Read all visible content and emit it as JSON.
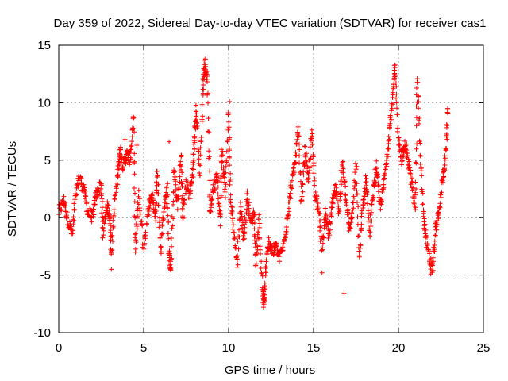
{
  "chart_data": {
    "type": "scatter",
    "title": "Day 359 of 2022, Sidereal Day-to-day VTEC variation (SDTVAR) for receiver cas1",
    "xlabel": "GPS time / hours",
    "ylabel": "SDTVAR / TECUs",
    "xlim": [
      0,
      25
    ],
    "ylim": [
      -10,
      15
    ],
    "x_ticks": [
      0,
      5,
      10,
      15,
      20,
      25
    ],
    "y_ticks": [
      -10,
      -5,
      0,
      5,
      10,
      15
    ],
    "grid": true,
    "marker": "+",
    "color": "#ff0000",
    "series": [
      {
        "name": "SDTVAR",
        "anchors": [
          [
            0.0,
            0.5
          ],
          [
            0.3,
            1.5
          ],
          [
            0.5,
            0.0
          ],
          [
            0.8,
            -1.5
          ],
          [
            1.0,
            2.0
          ],
          [
            1.2,
            3.5
          ],
          [
            1.5,
            2.5
          ],
          [
            1.7,
            0.5
          ],
          [
            2.0,
            0.0
          ],
          [
            2.2,
            2.0
          ],
          [
            2.5,
            3.0
          ],
          [
            2.6,
            -1.5
          ],
          [
            2.8,
            1.0
          ],
          [
            3.0,
            0.5
          ],
          [
            3.1,
            -3.0
          ],
          [
            3.3,
            1.5
          ],
          [
            3.5,
            4.0
          ],
          [
            3.6,
            6.0
          ],
          [
            3.8,
            4.5
          ],
          [
            4.0,
            5.5
          ],
          [
            4.2,
            5.0
          ],
          [
            4.4,
            8.6
          ],
          [
            4.5,
            -3.0
          ],
          [
            4.7,
            2.0
          ],
          [
            5.0,
            -2.5
          ],
          [
            5.3,
            1.0
          ],
          [
            5.5,
            2.0
          ],
          [
            5.7,
            0.0
          ],
          [
            5.8,
            4.5
          ],
          [
            6.0,
            -3.0
          ],
          [
            6.2,
            1.0
          ],
          [
            6.4,
            2.5
          ],
          [
            6.5,
            -3.5
          ],
          [
            6.6,
            -4.5
          ],
          [
            6.8,
            4.0
          ],
          [
            7.0,
            1.0
          ],
          [
            7.2,
            5.5
          ],
          [
            7.3,
            0.0
          ],
          [
            7.5,
            3.0
          ],
          [
            7.7,
            2.0
          ],
          [
            7.9,
            4.0
          ],
          [
            8.0,
            7.0
          ],
          [
            8.1,
            9.5
          ],
          [
            8.3,
            3.5
          ],
          [
            8.5,
            11.5
          ],
          [
            8.6,
            13.5
          ],
          [
            8.75,
            12.0
          ],
          [
            8.9,
            0.5
          ],
          [
            9.1,
            2.5
          ],
          [
            9.3,
            4.0
          ],
          [
            9.5,
            -0.5
          ],
          [
            9.6,
            6.0
          ],
          [
            9.8,
            2.0
          ],
          [
            10.0,
            9.0
          ],
          [
            10.1,
            2.0
          ],
          [
            10.3,
            -1.0
          ],
          [
            10.5,
            -4.0
          ],
          [
            10.7,
            1.0
          ],
          [
            10.9,
            -2.0
          ],
          [
            11.1,
            2.0
          ],
          [
            11.3,
            -0.5
          ],
          [
            11.5,
            0.5
          ],
          [
            11.6,
            -4.0
          ],
          [
            11.8,
            0.0
          ],
          [
            12.0,
            -6.5
          ],
          [
            12.1,
            -7.5
          ],
          [
            12.2,
            -4.0
          ],
          [
            12.4,
            -2.0
          ],
          [
            12.6,
            -3.0
          ],
          [
            12.8,
            -2.5
          ],
          [
            13.0,
            -3.5
          ],
          [
            13.3,
            -2.0
          ],
          [
            13.5,
            0.5
          ],
          [
            13.7,
            3.0
          ],
          [
            13.9,
            4.5
          ],
          [
            14.1,
            7.5
          ],
          [
            14.3,
            1.0
          ],
          [
            14.5,
            6.0
          ],
          [
            14.7,
            3.0
          ],
          [
            14.9,
            7.5
          ],
          [
            15.1,
            2.0
          ],
          [
            15.3,
            1.0
          ],
          [
            15.5,
            -3.0
          ],
          [
            15.7,
            0.5
          ],
          [
            15.9,
            -1.5
          ],
          [
            16.1,
            1.0
          ],
          [
            16.3,
            2.5
          ],
          [
            16.5,
            0.5
          ],
          [
            16.7,
            5.0
          ],
          [
            16.9,
            2.0
          ],
          [
            17.1,
            -1.0
          ],
          [
            17.3,
            0.5
          ],
          [
            17.5,
            4.5
          ],
          [
            17.7,
            -3.5
          ],
          [
            17.9,
            1.0
          ],
          [
            18.1,
            3.5
          ],
          [
            18.3,
            -1.5
          ],
          [
            18.5,
            2.0
          ],
          [
            18.7,
            4.5
          ],
          [
            18.9,
            1.0
          ],
          [
            19.1,
            2.5
          ],
          [
            19.3,
            5.0
          ],
          [
            19.5,
            8.0
          ],
          [
            19.7,
            11.0
          ],
          [
            19.8,
            13.0
          ],
          [
            20.0,
            7.0
          ],
          [
            20.2,
            5.0
          ],
          [
            20.4,
            6.5
          ],
          [
            20.6,
            4.5
          ],
          [
            20.8,
            3.0
          ],
          [
            21.0,
            1.0
          ],
          [
            21.1,
            12.5
          ],
          [
            21.3,
            5.0
          ],
          [
            21.5,
            0.0
          ],
          [
            21.6,
            -1.5
          ],
          [
            21.8,
            -3.5
          ],
          [
            22.0,
            -4.5
          ],
          [
            22.2,
            -1.0
          ],
          [
            22.4,
            0.5
          ],
          [
            22.6,
            3.5
          ],
          [
            22.8,
            5.5
          ],
          [
            22.9,
            9.5
          ]
        ],
        "isolated_points": [
          [
            4.4,
            8.7
          ],
          [
            4.6,
            6.3
          ],
          [
            6.5,
            6.6
          ],
          [
            12.05,
            -7.8
          ],
          [
            15.5,
            -4.8
          ],
          [
            16.8,
            -6.6
          ],
          [
            3.9,
            6.8
          ],
          [
            3.1,
            -4.5
          ],
          [
            10.05,
            10.1
          ],
          [
            21.9,
            -4.9
          ]
        ]
      }
    ]
  }
}
